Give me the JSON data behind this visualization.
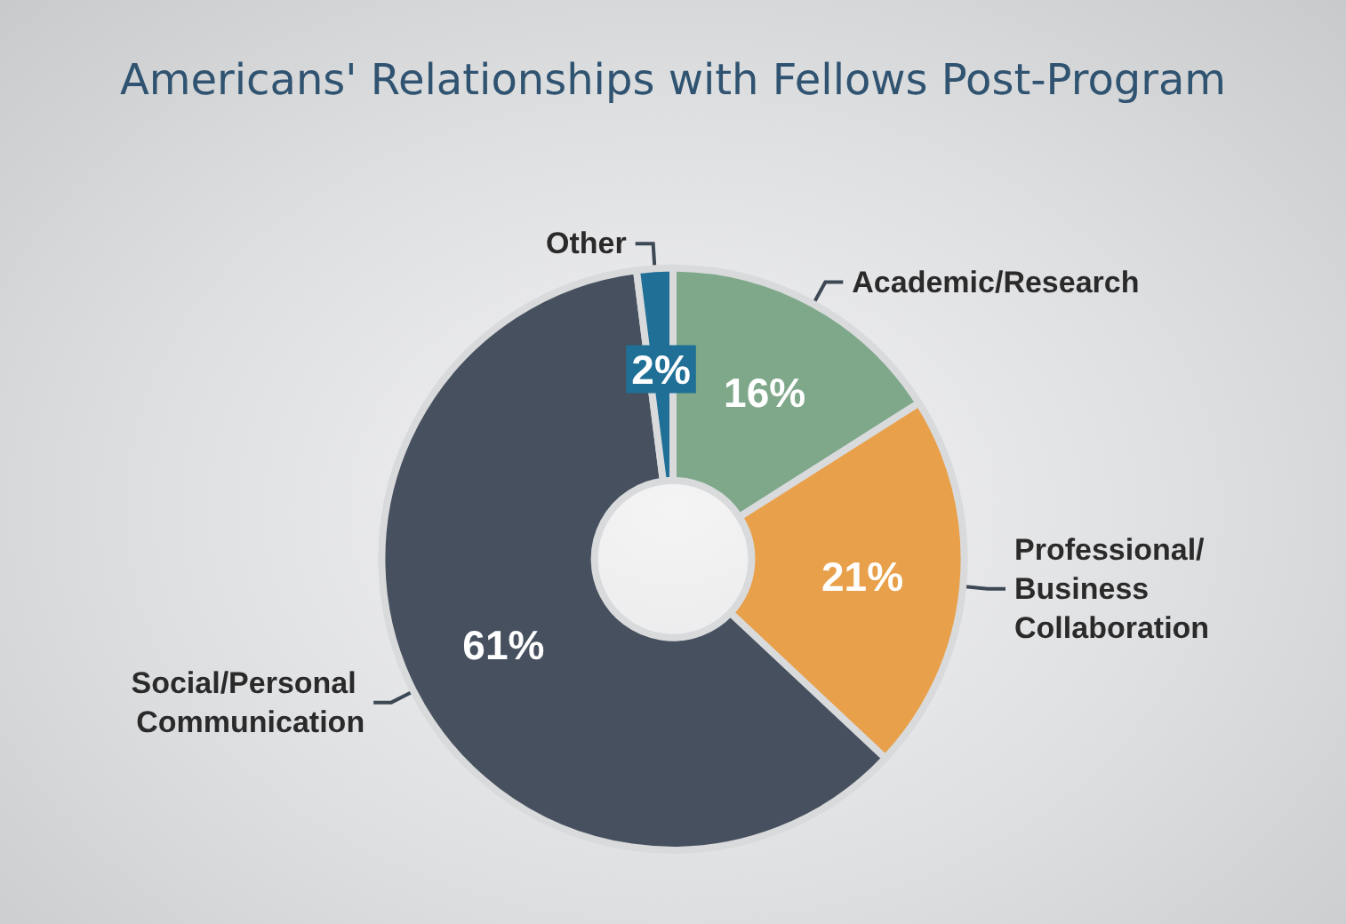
{
  "chart_data": {
    "type": "donut",
    "title": "Americans' Relationships with Fellows Post-Program",
    "categories": [
      "Academic/Research",
      "Professional/Business Collaboration",
      "Social/Personal Communication",
      "Other"
    ],
    "values": [
      16,
      21,
      61,
      2
    ],
    "value_labels": [
      "16%",
      "21%",
      "61%",
      "2%"
    ],
    "colors": [
      "#7fa88a",
      "#e8a04a",
      "#46505e",
      "#1f6f96"
    ],
    "legend": false
  }
}
